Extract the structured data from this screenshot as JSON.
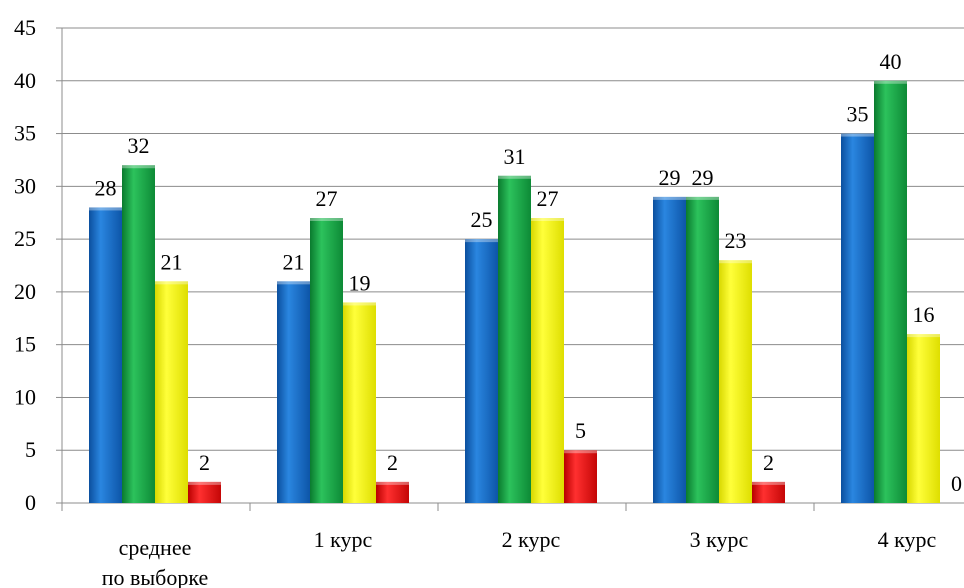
{
  "chart_data": {
    "type": "bar",
    "title": "",
    "xlabel": "",
    "ylabel": "",
    "ylim": [
      0,
      45
    ],
    "yticks": [
      0,
      5,
      10,
      15,
      20,
      25,
      30,
      35,
      40,
      45
    ],
    "grid": true,
    "legend": "none",
    "categories": [
      [
        "среднее",
        "по выборке"
      ],
      [
        "1 курс"
      ],
      [
        "2 курс"
      ],
      [
        "3 курс"
      ],
      [
        "4 курс"
      ]
    ],
    "series": [
      {
        "color": "#1f6fc5",
        "values": [
          28,
          21,
          25,
          29,
          35
        ]
      },
      {
        "color": "#1aa84a",
        "values": [
          32,
          27,
          31,
          29,
          40
        ]
      },
      {
        "color": "#f2f200",
        "values": [
          21,
          19,
          27,
          23,
          16
        ]
      },
      {
        "color": "#e01010",
        "values": [
          2,
          2,
          5,
          2,
          0
        ]
      }
    ]
  }
}
